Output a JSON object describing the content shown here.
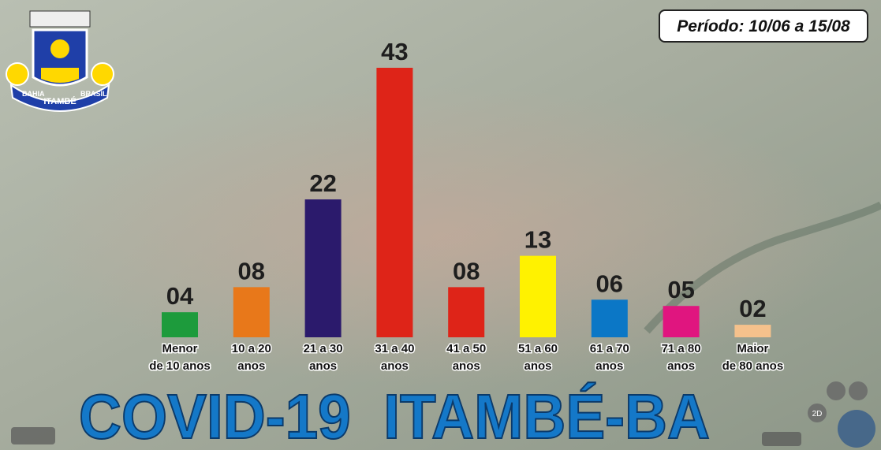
{
  "chart_data": {
    "type": "bar",
    "title": "COVID-19  ITAMBÉ-BA",
    "subtitle": "Período: 10/06 a 15/08",
    "categories": [
      [
        "Menor",
        "de 10 anos"
      ],
      [
        "10 a 20",
        "anos"
      ],
      [
        "21 a 30",
        "anos"
      ],
      [
        "31 a 40",
        "anos"
      ],
      [
        "41 a 50",
        "anos"
      ],
      [
        "51 a 60",
        "anos"
      ],
      [
        "61 a 70",
        "anos"
      ],
      [
        "71 a 80",
        "anos"
      ],
      [
        "Maior",
        "de 80 anos"
      ]
    ],
    "values": [
      4,
      8,
      22,
      43,
      8,
      13,
      6,
      5,
      2
    ],
    "value_labels": [
      "04",
      "08",
      "22",
      "43",
      "08",
      "13",
      "06",
      "05",
      "02"
    ],
    "colors": [
      "#1d9b3c",
      "#e8781a",
      "#2b1a6c",
      "#de2418",
      "#de2418",
      "#fff200",
      "#0b77c6",
      "#e0157f",
      "#f5c18c"
    ]
  },
  "logo": {
    "left": "BAHIA",
    "center": "ITAMBÉ",
    "right": "BRASIL"
  },
  "map_controls": {
    "mode": "2D"
  }
}
